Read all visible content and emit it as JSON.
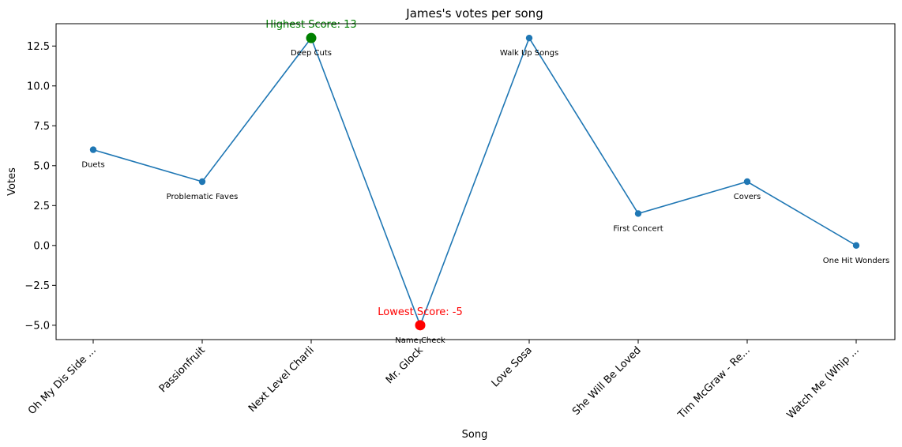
{
  "chart_data": {
    "type": "line",
    "title": "James's votes per song",
    "xlabel": "Song",
    "ylabel": "Votes",
    "ylim": [
      -5.9,
      13.9
    ],
    "yticks": [
      -5.0,
      -2.5,
      0.0,
      2.5,
      5.0,
      7.5,
      10.0,
      12.5
    ],
    "ytick_labels": [
      "−5.0",
      "−2.5",
      "0.0",
      "2.5",
      "5.0",
      "7.5",
      "10.0",
      "12.5"
    ],
    "categories": [
      "Oh My Dis Side ...",
      "Passionfruit",
      "Next Level Charli",
      "Mr. Glock",
      "Love Sosa",
      "She Will Be Loved",
      "Tim McGraw - Re...",
      "Watch Me (Whip ..."
    ],
    "values": [
      6,
      4,
      13,
      -5,
      13,
      2,
      4,
      0
    ],
    "point_labels": [
      "Duets",
      "Problematic Faves",
      "Deep Cuts",
      "Name Check",
      "Walk Up Songs",
      "First Concert",
      "Covers",
      "One Hit Wonders"
    ],
    "line_color": "#1f77b4",
    "highest": {
      "index": 2,
      "label": "Highest Score: 13",
      "color": "#008000"
    },
    "lowest": {
      "index": 3,
      "label": "Lowest Score: -5",
      "color": "#ff0000"
    },
    "grid": false,
    "legend": "none"
  }
}
